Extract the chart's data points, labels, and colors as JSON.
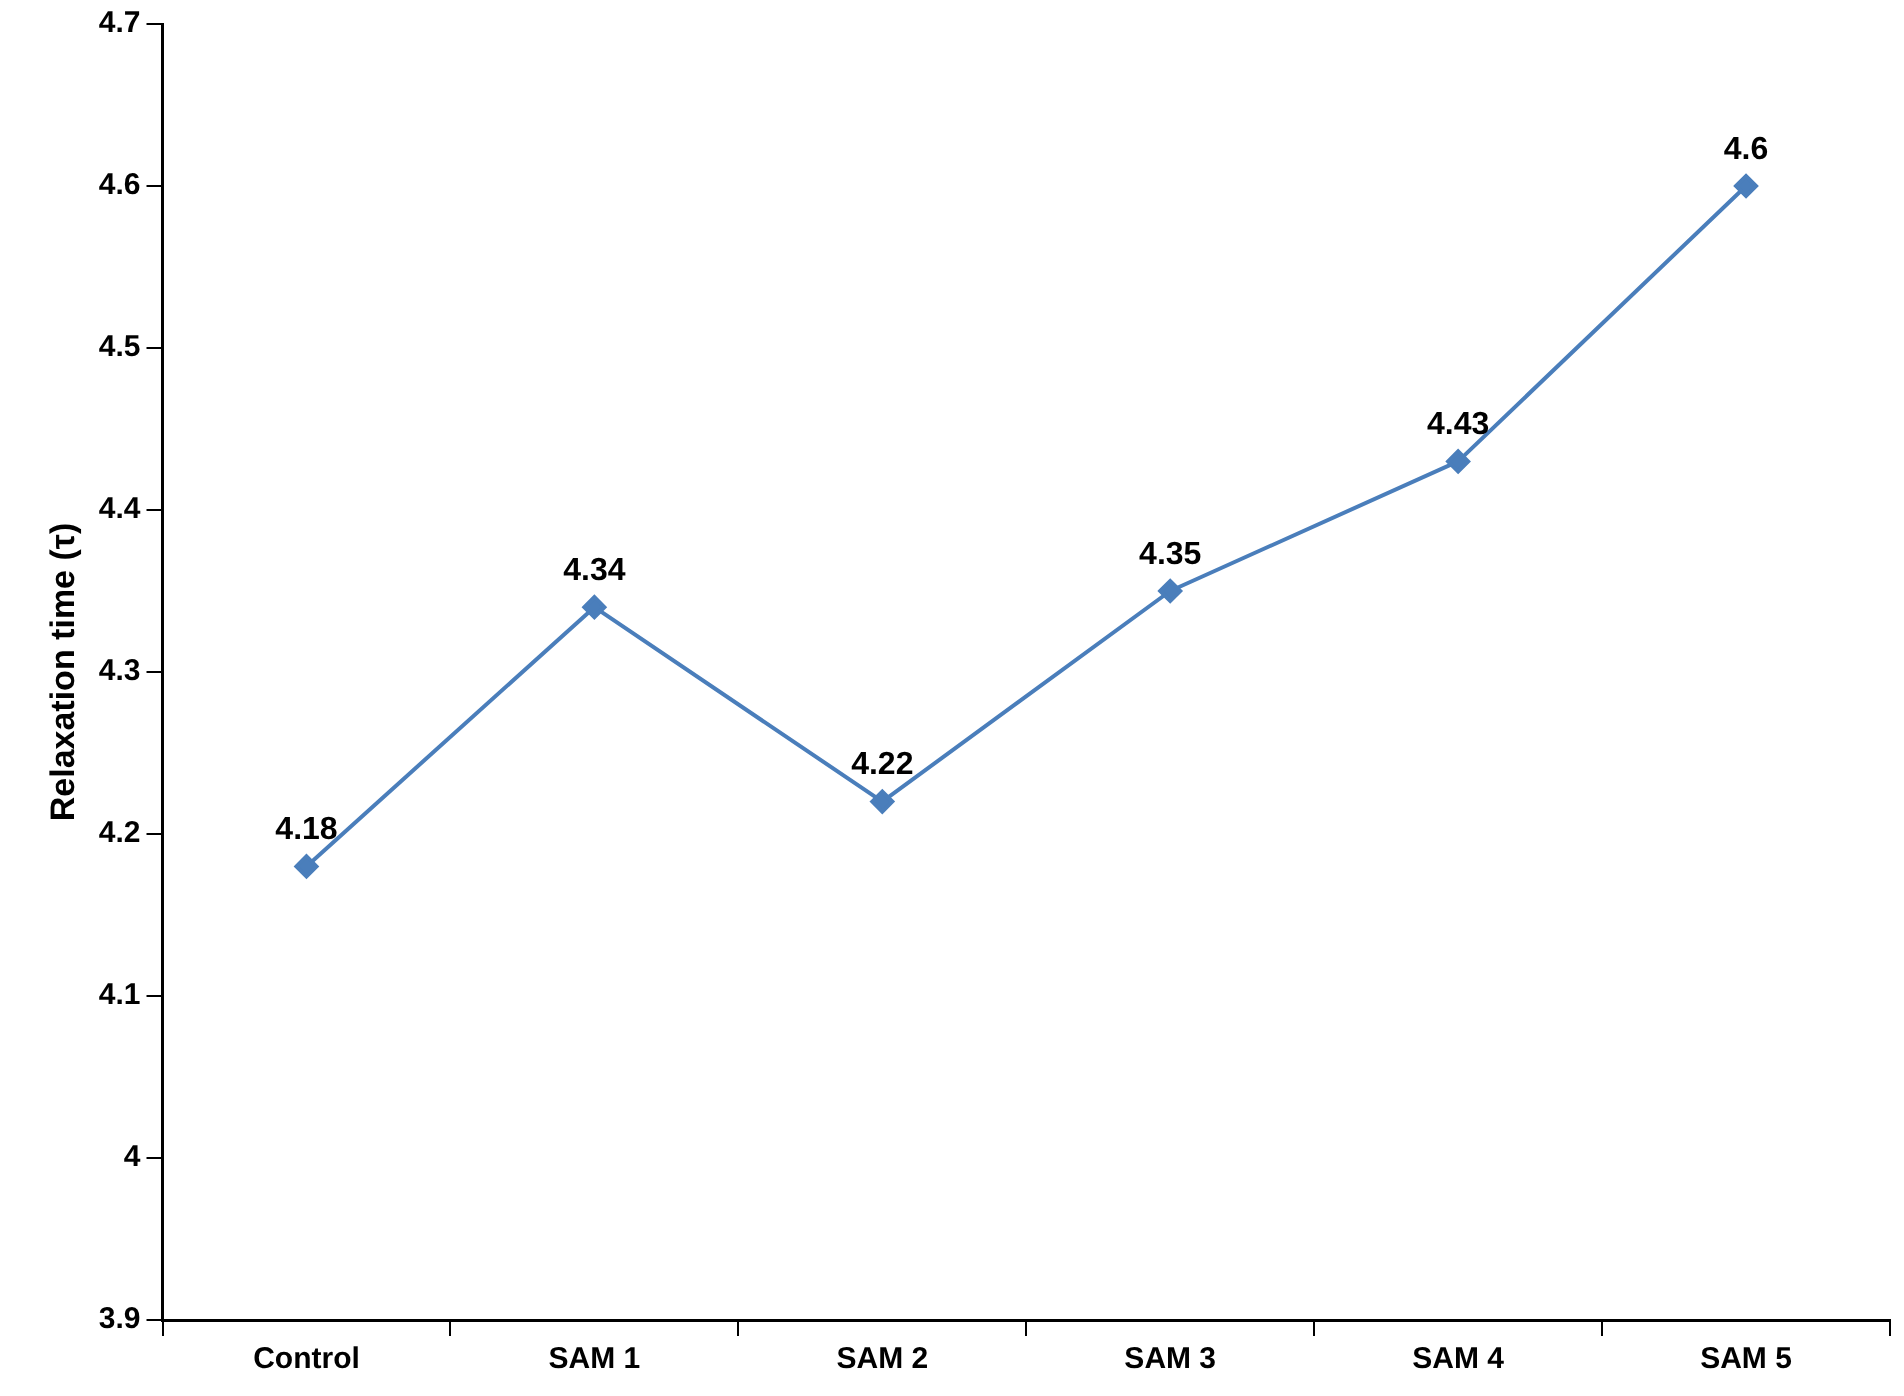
{
  "chart_data": {
    "type": "line",
    "ylabel": "Relaxation time (τ)",
    "categories": [
      "Control",
      "SAM 1",
      "SAM 2",
      "SAM 3",
      "SAM 4",
      "SAM 5"
    ],
    "series": [
      {
        "color": "#4a7ebb",
        "values": [
          4.18,
          4.34,
          4.22,
          4.35,
          4.43,
          4.6
        ]
      }
    ],
    "ylim": [
      3.9,
      4.7
    ],
    "yticks": [
      3.9,
      4,
      4.1,
      4.2,
      4.3,
      4.4,
      4.5,
      4.6,
      4.7
    ],
    "data_labels": true,
    "grid": false,
    "legend": false,
    "marker": "diamond",
    "line_style": "solid"
  }
}
